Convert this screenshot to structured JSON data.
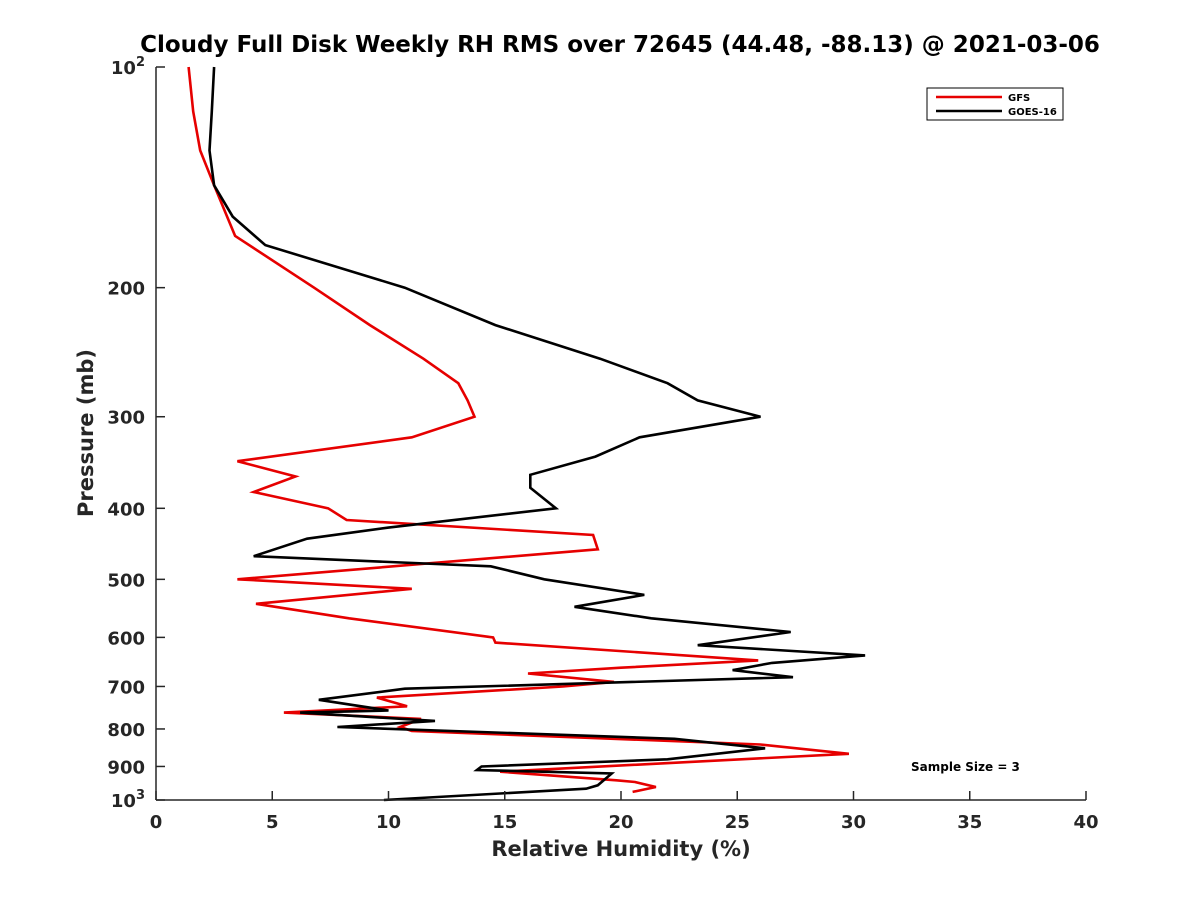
{
  "chart_data": {
    "type": "line",
    "title": "Cloudy Full Disk Weekly RH RMS over 72645 (44.48, -88.13) @ 2021-03-06",
    "xlabel": "Relative Humidity (%)",
    "ylabel": "Pressure (mb)",
    "xlim": [
      0,
      40
    ],
    "ylim": [
      100,
      1000
    ],
    "y_scale": "log",
    "y_reversed": true,
    "grid": false,
    "legend_position": "top-right",
    "x_ticks": [
      0,
      5,
      10,
      15,
      20,
      25,
      30,
      35,
      40
    ],
    "y_ticks": [
      {
        "value": 100,
        "label": "10",
        "sup": "2"
      },
      {
        "value": 200,
        "label": "200"
      },
      {
        "value": 300,
        "label": "300"
      },
      {
        "value": 400,
        "label": "400"
      },
      {
        "value": 500,
        "label": "500"
      },
      {
        "value": 600,
        "label": "600"
      },
      {
        "value": 700,
        "label": "700"
      },
      {
        "value": 800,
        "label": "800"
      },
      {
        "value": 900,
        "label": "900"
      },
      {
        "value": 1000,
        "label": "10",
        "sup": "3"
      }
    ],
    "annotation": "Sample Size = 3",
    "series": [
      {
        "name": "GFS",
        "color": "#e60000",
        "points": [
          [
            1.4,
            100
          ],
          [
            1.6,
            115
          ],
          [
            1.9,
            130
          ],
          [
            2.5,
            145
          ],
          [
            3.4,
            170
          ],
          [
            6.8,
            200
          ],
          [
            9.2,
            225
          ],
          [
            11.5,
            250
          ],
          [
            13.0,
            270
          ],
          [
            13.4,
            285
          ],
          [
            13.7,
            300
          ],
          [
            11.0,
            320
          ],
          [
            3.5,
            345
          ],
          [
            6.0,
            362
          ],
          [
            4.2,
            380
          ],
          [
            7.4,
            400
          ],
          [
            8.2,
            415
          ],
          [
            18.8,
            435
          ],
          [
            19.0,
            455
          ],
          [
            3.5,
            500
          ],
          [
            11.0,
            515
          ],
          [
            4.3,
            540
          ],
          [
            8.3,
            565
          ],
          [
            14.5,
            600
          ],
          [
            14.6,
            610
          ],
          [
            25.9,
            645
          ],
          [
            20.0,
            660
          ],
          [
            16.0,
            672
          ],
          [
            19.7,
            690
          ],
          [
            17.5,
            700
          ],
          [
            9.5,
            725
          ],
          [
            10.8,
            745
          ],
          [
            5.5,
            760
          ],
          [
            11.4,
            775
          ],
          [
            10.5,
            795
          ],
          [
            11.0,
            805
          ],
          [
            26.0,
            840
          ],
          [
            29.8,
            865
          ],
          [
            14.8,
            915
          ],
          [
            19.8,
            940
          ],
          [
            20.6,
            945
          ],
          [
            21.5,
            960
          ],
          [
            20.5,
            975
          ]
        ]
      },
      {
        "name": "GOES-16",
        "color": "#000000",
        "points": [
          [
            2.5,
            100
          ],
          [
            2.4,
            115
          ],
          [
            2.3,
            130
          ],
          [
            2.5,
            145
          ],
          [
            3.3,
            160
          ],
          [
            4.7,
            175
          ],
          [
            10.7,
            200
          ],
          [
            14.6,
            225
          ],
          [
            19.1,
            250
          ],
          [
            22.0,
            270
          ],
          [
            23.3,
            285
          ],
          [
            26.0,
            300
          ],
          [
            20.8,
            320
          ],
          [
            18.9,
            340
          ],
          [
            16.1,
            360
          ],
          [
            16.1,
            375
          ],
          [
            17.2,
            400
          ],
          [
            10.0,
            425
          ],
          [
            6.5,
            440
          ],
          [
            4.2,
            465
          ],
          [
            14.4,
            480
          ],
          [
            16.7,
            500
          ],
          [
            21.0,
            525
          ],
          [
            18.0,
            545
          ],
          [
            21.3,
            565
          ],
          [
            27.3,
            590
          ],
          [
            23.3,
            615
          ],
          [
            30.5,
            635
          ],
          [
            26.5,
            650
          ],
          [
            24.8,
            665
          ],
          [
            27.4,
            680
          ],
          [
            10.7,
            705
          ],
          [
            7.0,
            730
          ],
          [
            10.0,
            755
          ],
          [
            6.2,
            760
          ],
          [
            12.0,
            780
          ],
          [
            7.8,
            795
          ],
          [
            22.3,
            825
          ],
          [
            26.2,
            850
          ],
          [
            22.0,
            880
          ],
          [
            14.0,
            900
          ],
          [
            13.8,
            910
          ],
          [
            19.6,
            920
          ],
          [
            19.0,
            955
          ],
          [
            18.5,
            965
          ],
          [
            9.8,
            1000
          ]
        ]
      }
    ]
  }
}
